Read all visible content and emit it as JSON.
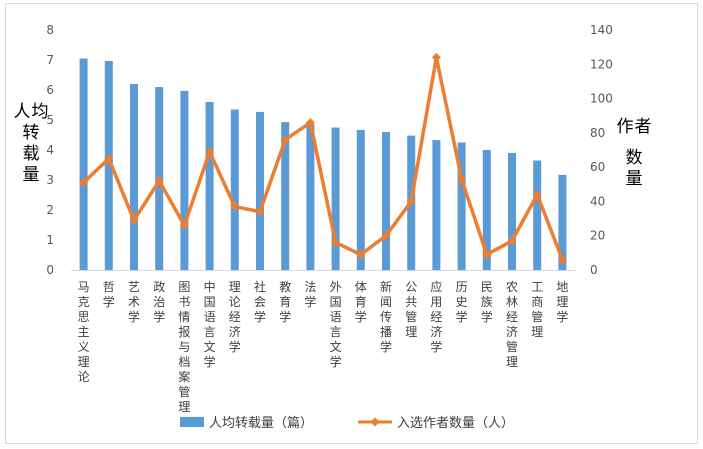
{
  "chart_data": {
    "type": "bar+line",
    "categories": [
      "马克思主义理论",
      "哲学",
      "艺术学",
      "政治学",
      "图书情报与档案管理",
      "中国语言文学",
      "理论经济学",
      "社会学",
      "教育学",
      "法学",
      "外国语言文学",
      "体育学",
      "新闻传播学",
      "公共管理",
      "应用经济学",
      "历史学",
      "民族学",
      "农林经济管理",
      "工商管理",
      "地理学"
    ],
    "series": [
      {
        "name": "人均转载量（篇）",
        "type": "bar",
        "axis": "left",
        "color": "#5b9bd5",
        "values": [
          7.05,
          6.97,
          6.2,
          6.1,
          5.97,
          5.6,
          5.35,
          5.27,
          4.93,
          4.85,
          4.75,
          4.67,
          4.6,
          4.48,
          4.33,
          4.25,
          4.0,
          3.9,
          3.65,
          3.17
        ]
      },
      {
        "name": "入选作者数量（人）",
        "type": "line",
        "axis": "right",
        "color": "#ed7d31",
        "values": [
          51,
          65,
          29,
          52,
          26,
          69,
          37,
          34,
          76,
          86,
          16,
          9,
          20,
          40,
          124,
          53,
          9,
          17,
          44,
          6
        ]
      }
    ],
    "ylabel_left": "人均转载量",
    "ylabel_right": "作者数量",
    "ylim_left": [
      0,
      8
    ],
    "yticks_left": [
      0,
      1,
      2,
      3,
      4,
      5,
      6,
      7,
      8
    ],
    "ylim_right": [
      0,
      140
    ],
    "yticks_right": [
      0,
      20,
      40,
      60,
      80,
      100,
      120,
      140
    ],
    "grid": false,
    "legend_position": "bottom"
  }
}
